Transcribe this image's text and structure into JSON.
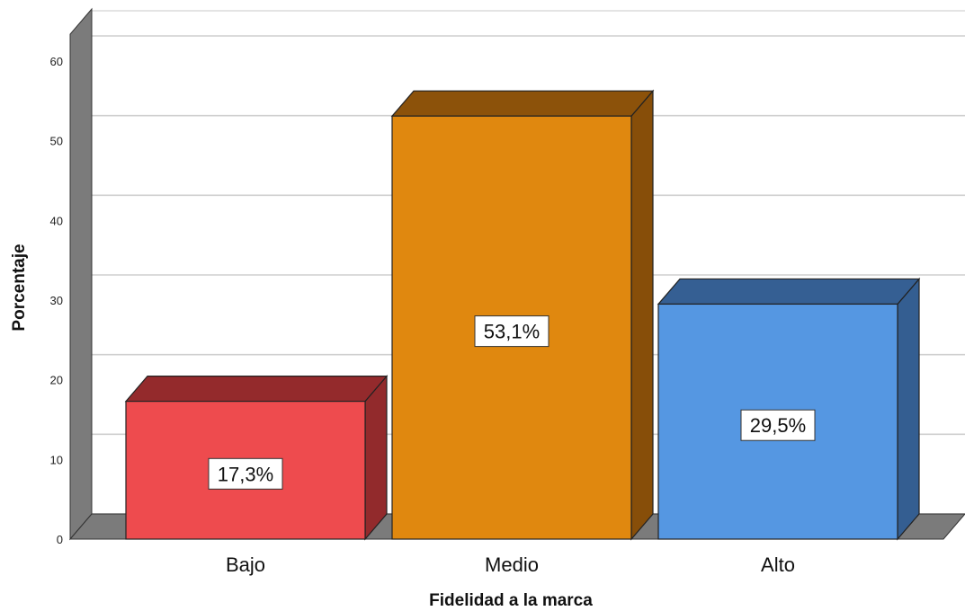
{
  "chart_data": {
    "type": "bar",
    "style": "3d",
    "categories": [
      "Bajo",
      "Medio",
      "Alto"
    ],
    "values": [
      17.3,
      53.1,
      29.5
    ],
    "data_labels": [
      "17,3%",
      "53,1%",
      "29,5%"
    ],
    "colors": {
      "front": [
        "#ee4b4e",
        "#e0880f",
        "#5597e2"
      ],
      "top": [
        "#942a2c",
        "#8c520a",
        "#355f93"
      ],
      "side": [
        "#922a2c",
        "#874e09",
        "#345e91"
      ]
    },
    "xlabel": "Fidelidad a la marca",
    "ylabel": "Porcentaje",
    "ylim": [
      0,
      60
    ],
    "yticks": [
      "0",
      "10",
      "20",
      "30",
      "40",
      "50",
      "60"
    ],
    "grid": true,
    "legend": "none",
    "wall_color": "#7b7b7b"
  }
}
